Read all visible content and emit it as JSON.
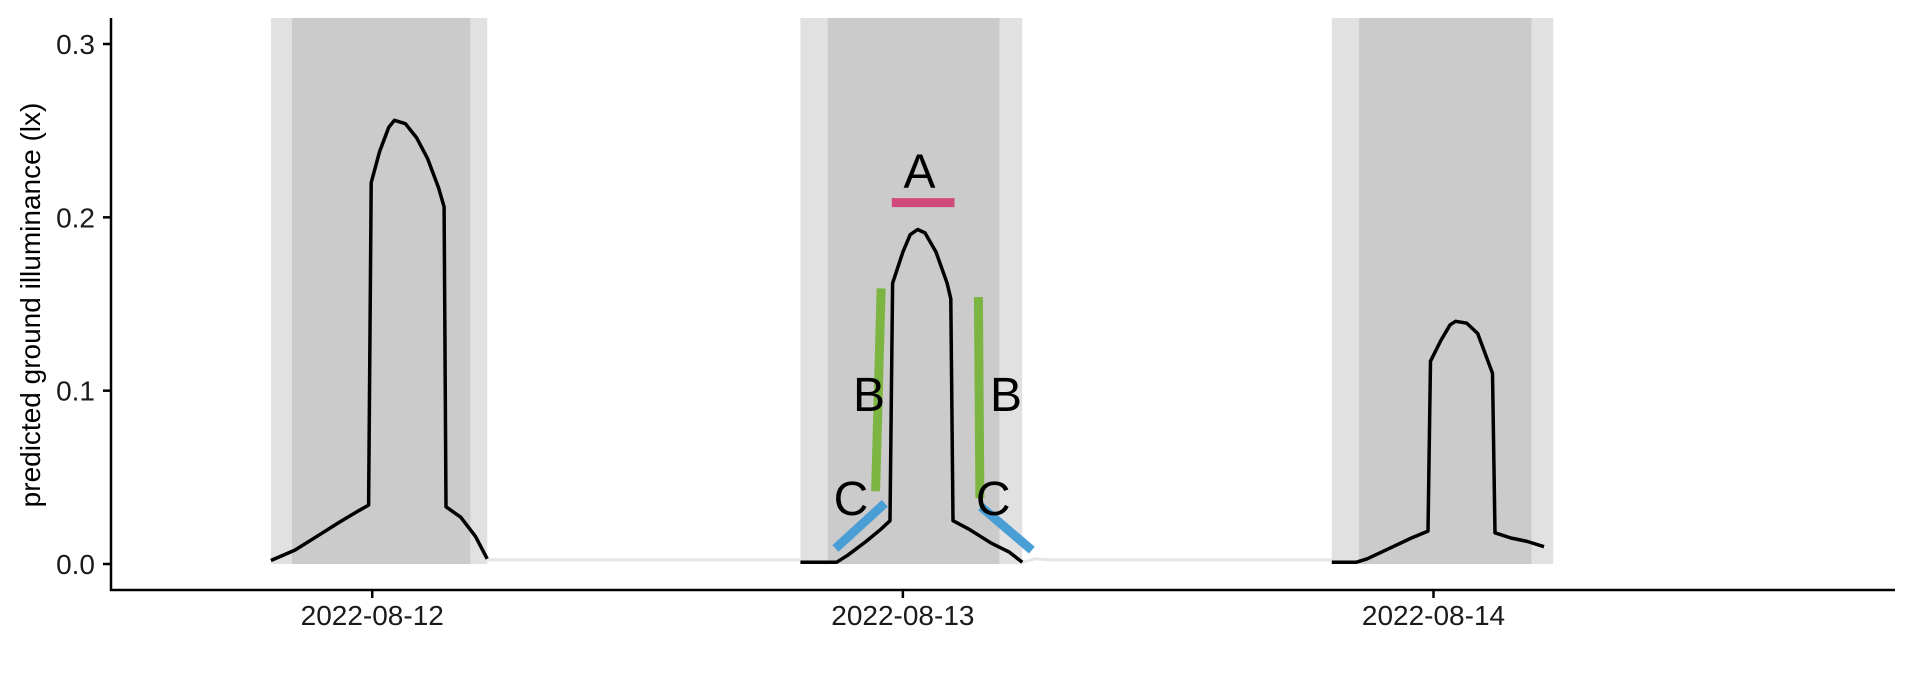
{
  "chart_data": {
    "type": "line",
    "ylabel": "predicted ground illuminance (lx)",
    "xlabel": "",
    "ylim": [
      -0.015,
      0.315
    ],
    "yticks": [
      0.0,
      0.1,
      0.2,
      0.3
    ],
    "ytick_labels": [
      "0.0",
      "0.1",
      "0.2",
      "0.3"
    ],
    "xlim": [
      "2022-08-11T12:11",
      "2022-08-14T20:47"
    ],
    "xticks": [
      {
        "x": "2022-08-12T00:00",
        "label": "2022-08-12"
      },
      {
        "x": "2022-08-13T00:00",
        "label": "2022-08-13"
      },
      {
        "x": "2022-08-14T00:00",
        "label": "2022-08-14"
      }
    ],
    "twilight_bands": [
      {
        "start": "2022-08-11T19:25",
        "end": "2022-08-12T05:12"
      },
      {
        "start": "2022-08-12T19:22",
        "end": "2022-08-13T05:24"
      },
      {
        "start": "2022-08-13T19:24",
        "end": "2022-08-14T05:25"
      }
    ],
    "night_bands": [
      {
        "start": "2022-08-11T20:22",
        "end": "2022-08-12T04:26"
      },
      {
        "start": "2022-08-12T20:36",
        "end": "2022-08-13T04:22"
      },
      {
        "start": "2022-08-13T20:38",
        "end": "2022-08-14T04:26"
      }
    ],
    "series": [
      {
        "points": [
          [
            "2022-08-11T19:25",
            0.002
          ],
          [
            "2022-08-11T20:30",
            0.008
          ],
          [
            "2022-08-11T21:30",
            0.016
          ],
          [
            "2022-08-11T22:30",
            0.024
          ],
          [
            "2022-08-11T23:25",
            0.031
          ],
          [
            "2022-08-11T23:50",
            0.034
          ],
          [
            "2022-08-11T23:57",
            0.22
          ],
          [
            "2022-08-12T00:20",
            0.238
          ],
          [
            "2022-08-12T00:45",
            0.252
          ],
          [
            "2022-08-12T01:00",
            0.256
          ],
          [
            "2022-08-12T01:30",
            0.254
          ],
          [
            "2022-08-12T02:00",
            0.246
          ],
          [
            "2022-08-12T02:30",
            0.234
          ],
          [
            "2022-08-12T03:00",
            0.217
          ],
          [
            "2022-08-12T03:15",
            0.206
          ],
          [
            "2022-08-12T03:20",
            0.033
          ],
          [
            "2022-08-12T04:00",
            0.027
          ],
          [
            "2022-08-12T04:40",
            0.016
          ],
          [
            "2022-08-12T05:12",
            0.003
          ]
        ]
      },
      {
        "points": [
          [
            "2022-08-12T19:22",
            0.001
          ],
          [
            "2022-08-12T21:00",
            0.001
          ],
          [
            "2022-08-12T21:30",
            0.005
          ],
          [
            "2022-08-12T22:20",
            0.013
          ],
          [
            "2022-08-12T23:00",
            0.02
          ],
          [
            "2022-08-12T23:25",
            0.025
          ],
          [
            "2022-08-12T23:32",
            0.162
          ],
          [
            "2022-08-13T00:00",
            0.18
          ],
          [
            "2022-08-13T00:20",
            0.19
          ],
          [
            "2022-08-13T00:40",
            0.193
          ],
          [
            "2022-08-13T01:00",
            0.191
          ],
          [
            "2022-08-13T01:30",
            0.18
          ],
          [
            "2022-08-13T02:00",
            0.162
          ],
          [
            "2022-08-13T02:10",
            0.153
          ],
          [
            "2022-08-13T02:16",
            0.025
          ],
          [
            "2022-08-13T03:00",
            0.02
          ],
          [
            "2022-08-13T04:00",
            0.012
          ],
          [
            "2022-08-13T04:48",
            0.007
          ],
          [
            "2022-08-13T05:24",
            0.001
          ]
        ]
      },
      {
        "points": [
          [
            "2022-08-13T19:24",
            0.001
          ],
          [
            "2022-08-13T20:30",
            0.001
          ],
          [
            "2022-08-13T21:00",
            0.003
          ],
          [
            "2022-08-13T22:00",
            0.009
          ],
          [
            "2022-08-13T23:00",
            0.015
          ],
          [
            "2022-08-13T23:45",
            0.019
          ],
          [
            "2022-08-13T23:52",
            0.117
          ],
          [
            "2022-08-14T00:20",
            0.129
          ],
          [
            "2022-08-14T00:45",
            0.138
          ],
          [
            "2022-08-14T01:00",
            0.14
          ],
          [
            "2022-08-14T01:30",
            0.139
          ],
          [
            "2022-08-14T02:00",
            0.133
          ],
          [
            "2022-08-14T02:40",
            0.11
          ],
          [
            "2022-08-14T02:47",
            0.018
          ],
          [
            "2022-08-14T03:30",
            0.015
          ],
          [
            "2022-08-14T04:15",
            0.013
          ],
          [
            "2022-08-14T05:00",
            0.01
          ]
        ]
      }
    ],
    "annotations": [
      {
        "label": "A",
        "color": "#d0487c",
        "label_pos": [
          "2022-08-13T00:45",
          0.227
        ],
        "segment": [
          [
            "2022-08-12T23:30",
            0.2085
          ],
          [
            "2022-08-13T02:20",
            0.2085
          ]
        ]
      },
      {
        "label": "B",
        "color": "#7db543",
        "label_pos": [
          "2022-08-12T22:28",
          0.098
        ],
        "segment": [
          [
            "2022-08-12T22:46",
            0.042
          ],
          [
            "2022-08-12T23:01",
            0.159
          ]
        ]
      },
      {
        "label": "B",
        "color": "#7db543",
        "label_pos": [
          "2022-08-13T04:40",
          0.098
        ],
        "segment": [
          [
            "2022-08-13T03:25",
            0.154
          ],
          [
            "2022-08-13T03:29",
            0.038
          ]
        ]
      },
      {
        "label": "C",
        "color": "#4a9ed6",
        "label_pos": [
          "2022-08-12T21:39",
          0.038
        ],
        "segment": [
          [
            "2022-08-12T20:57",
            0.009
          ],
          [
            "2022-08-12T23:11",
            0.035
          ]
        ]
      },
      {
        "label": "C",
        "color": "#4a9ed6",
        "label_pos": [
          "2022-08-13T04:05",
          0.038
        ],
        "segment": [
          [
            "2022-08-13T03:32",
            0.033
          ],
          [
            "2022-08-13T05:50",
            0.008
          ]
        ]
      }
    ],
    "night_segments": [
      [
        [
          "2022-08-12T05:12",
          0.0025
        ],
        [
          "2022-08-12T19:22",
          0.0025
        ]
      ],
      [
        [
          "2022-08-13T05:24",
          0.001
        ],
        [
          "2022-08-13T06:00",
          0.003
        ],
        [
          "2022-08-13T06:30",
          0.0025
        ],
        [
          "2022-08-13T19:24",
          0.0025
        ]
      ]
    ],
    "colors": {
      "twilight": "#e1e1e1",
      "night": "#cbcbcb",
      "curve": "#000000",
      "night_line": "#e6e6e6"
    }
  }
}
